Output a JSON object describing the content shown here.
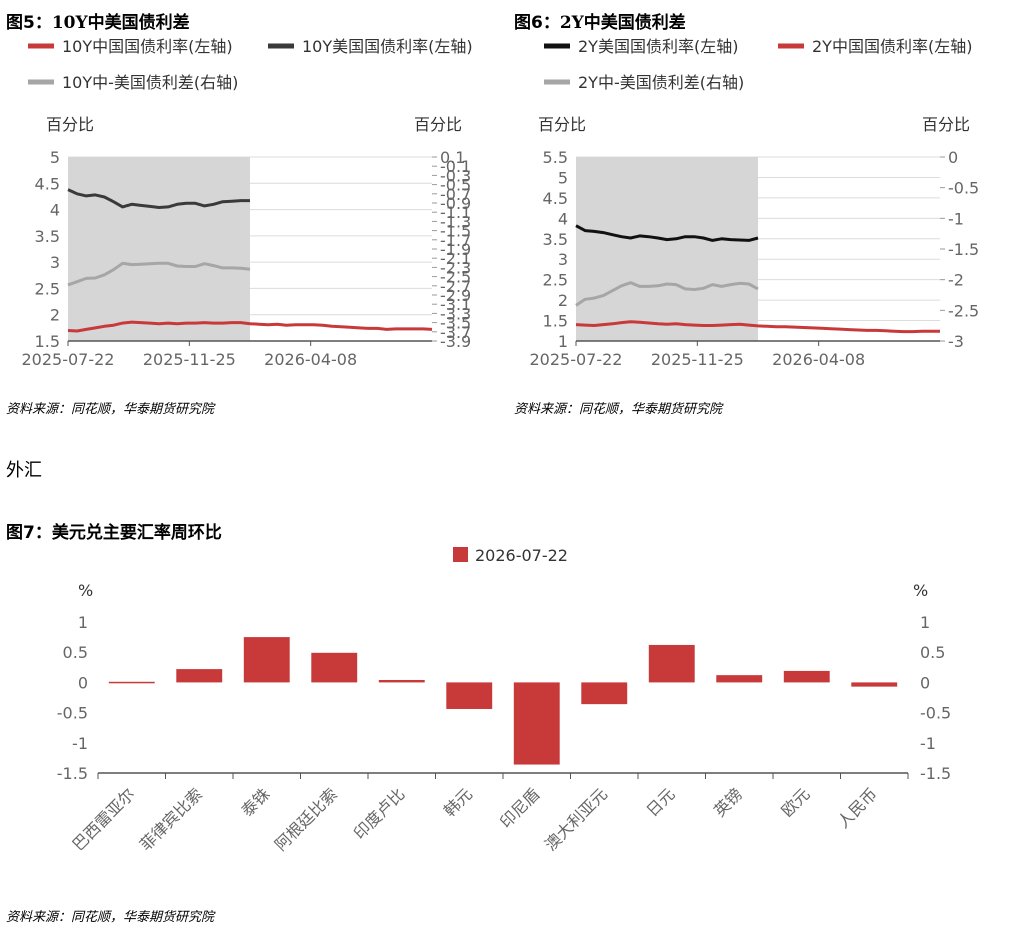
{
  "figures": {
    "fig5": {
      "title_prefix": "图5：",
      "title_main": "10Y中美国债利差"
    },
    "fig6": {
      "title_prefix": "图6：",
      "title_main": "2Y中美国债利差"
    },
    "fig7": {
      "title": "图7：美元兑主要汇率周环比"
    }
  },
  "source_text": "资料来源：同花顺，华泰期货研究院",
  "section_label": "外汇",
  "colors": {
    "red": "#c8393a",
    "dark": "#3a3a3a",
    "black": "#111111",
    "gray": "#a6a6a6",
    "shade": "#d6d6d6"
  },
  "chart_data": [
    {
      "type": "line",
      "id": "fig5",
      "x_ticks": [
        "2025-07-22",
        "2025-11-25",
        "2026-04-08"
      ],
      "y_left_ticks": [
        "5",
        "4.5",
        "4",
        "3.5",
        "3",
        "2.5",
        "2",
        "1.5"
      ],
      "ylim_left": [
        1.5,
        5
      ],
      "left_unit": "百分比",
      "right_unit": "百分比",
      "y_right_ticks": [
        "0.1",
        "-0.1",
        "-0.3",
        "-0.5",
        "-0.7",
        "-0.9",
        "-1.1",
        "-1.3",
        "-1.5",
        "-1.7",
        "-1.9",
        "-2.1",
        "-2.3",
        "-2.5",
        "-2.7",
        "-2.9",
        "-3.1",
        "-3.3",
        "-3.5",
        "-3.7",
        "-3.9"
      ],
      "ylim_right": [
        -3.9,
        0.1
      ],
      "shaded_x_end_fraction": 0.5,
      "series": [
        {
          "name": "10Y中国国债利率(左轴)",
          "axis": "left",
          "color": "#c8393a",
          "values": [
            1.7,
            1.69,
            1.72,
            1.75,
            1.78,
            1.8,
            1.84,
            1.86,
            1.85,
            1.84,
            1.83,
            1.84,
            1.83,
            1.84,
            1.84,
            1.85,
            1.84,
            1.84,
            1.85,
            1.85,
            1.83,
            1.82,
            1.81,
            1.82,
            1.8,
            1.81,
            1.81,
            1.81,
            1.8,
            1.78,
            1.77,
            1.76,
            1.75,
            1.74,
            1.74,
            1.72,
            1.73,
            1.73,
            1.73,
            1.73,
            1.72
          ]
        },
        {
          "name": "10Y美国国债利率(左轴)",
          "axis": "left",
          "color": "#3a3a3a",
          "values": [
            4.38,
            4.3,
            4.26,
            4.28,
            4.24,
            4.15,
            4.05,
            4.1,
            4.08,
            4.06,
            4.04,
            4.05,
            4.1,
            4.12,
            4.12,
            4.07,
            4.1,
            4.15,
            4.16,
            4.17,
            4.17
          ]
        },
        {
          "name": "10Y中-美国债利差(右轴)",
          "axis": "right",
          "color": "#a6a6a6",
          "values": [
            -2.68,
            -2.61,
            -2.54,
            -2.53,
            -2.46,
            -2.35,
            -2.21,
            -2.24,
            -2.23,
            -2.22,
            -2.21,
            -2.21,
            -2.27,
            -2.28,
            -2.28,
            -2.22,
            -2.26,
            -2.31,
            -2.31,
            -2.32,
            -2.34
          ]
        }
      ]
    },
    {
      "type": "line",
      "id": "fig6",
      "x_ticks": [
        "2025-07-22",
        "2025-11-25",
        "2026-04-08"
      ],
      "y_left_ticks": [
        "5.5",
        "5",
        "4.5",
        "4",
        "3.5",
        "3",
        "2.5",
        "2",
        "1.5",
        "1"
      ],
      "ylim_left": [
        1,
        5.5
      ],
      "left_unit": "百分比",
      "right_unit": "百分比",
      "y_right_ticks": [
        "0",
        "-0.5",
        "-1",
        "-1.5",
        "-2",
        "-2.5",
        "-3"
      ],
      "ylim_right": [
        -3,
        0
      ],
      "shaded_x_end_fraction": 0.5,
      "series": [
        {
          "name": "2Y美国国债利率(左轴)",
          "axis": "left",
          "color": "#111111",
          "values": [
            3.82,
            3.7,
            3.68,
            3.65,
            3.6,
            3.55,
            3.52,
            3.57,
            3.55,
            3.52,
            3.48,
            3.5,
            3.55,
            3.55,
            3.52,
            3.46,
            3.5,
            3.48,
            3.47,
            3.46,
            3.52
          ]
        },
        {
          "name": "2Y中国国债利率(左轴)",
          "axis": "left",
          "color": "#c8393a",
          "values": [
            1.4,
            1.39,
            1.38,
            1.4,
            1.42,
            1.45,
            1.47,
            1.46,
            1.44,
            1.42,
            1.41,
            1.42,
            1.4,
            1.39,
            1.38,
            1.38,
            1.39,
            1.4,
            1.41,
            1.39,
            1.37,
            1.36,
            1.35,
            1.35,
            1.34,
            1.33,
            1.32,
            1.31,
            1.3,
            1.29,
            1.28,
            1.27,
            1.26,
            1.26,
            1.25,
            1.24,
            1.23,
            1.23,
            1.24,
            1.24,
            1.24
          ]
        },
        {
          "name": "2Y中-美国债利差(右轴)",
          "axis": "right",
          "color": "#a6a6a6",
          "values": [
            -2.42,
            -2.32,
            -2.3,
            -2.26,
            -2.18,
            -2.1,
            -2.05,
            -2.11,
            -2.11,
            -2.1,
            -2.07,
            -2.08,
            -2.15,
            -2.16,
            -2.14,
            -2.08,
            -2.11,
            -2.08,
            -2.06,
            -2.07,
            -2.15
          ]
        }
      ]
    },
    {
      "type": "bar",
      "id": "fig7",
      "legend": "2026-07-22",
      "left_unit": "%",
      "right_unit": "%",
      "y_ticks": [
        "1",
        "0.5",
        "0",
        "-0.5",
        "-1",
        "-1.5"
      ],
      "ylim": [
        -1.5,
        1
      ],
      "categories": [
        "巴西雷亚尔",
        "菲律宾比索",
        "泰铢",
        "阿根廷比索",
        "印度卢比",
        "韩元",
        "印尼盾",
        "澳大利亚元",
        "日元",
        "英镑",
        "欧元",
        "人民币"
      ],
      "values": [
        0.01,
        0.22,
        0.75,
        0.49,
        0.04,
        -0.44,
        -1.36,
        -0.36,
        0.62,
        0.12,
        0.19,
        -0.07
      ],
      "color": "#c8393a"
    }
  ]
}
